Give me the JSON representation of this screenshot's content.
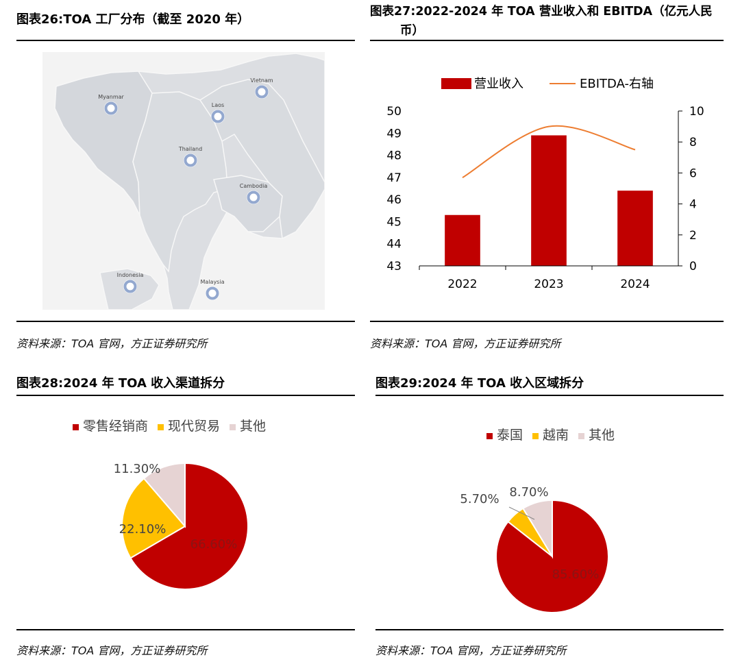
{
  "colors": {
    "red": "#C00000",
    "orange": "#ED7D31",
    "yellow": "#FFC000",
    "pink": "#E6D3D3",
    "map_land": "#DCDEE2",
    "map_sea": "#F3F3F3",
    "marker": "#93A8CF"
  },
  "fig26": {
    "title": "图表26:TOA 工厂分布（截至 2020 年）",
    "source": "资料来源：TOA 官网，方正证券研究所",
    "map": {
      "markers": [
        {
          "label": "Myanmar",
          "icon": "location-marker-icon"
        },
        {
          "label": "Laos",
          "icon": "location-marker-icon"
        },
        {
          "label": "Vietnam",
          "icon": "location-marker-icon"
        },
        {
          "label": "Thailand",
          "icon": "location-marker-icon"
        },
        {
          "label": "Cambodia",
          "icon": "location-marker-icon"
        },
        {
          "label": "Indonesia",
          "icon": "location-marker-icon"
        },
        {
          "label": "Malaysia",
          "icon": "location-marker-icon"
        }
      ]
    }
  },
  "fig27": {
    "title_line1": "图表27:2022-2024 年 TOA 营业收入和 EBITDA（亿元人民",
    "title_line2": "币）",
    "source": "资料来源：TOA 官网，方正证券研究所",
    "chart_data": {
      "type": "bar",
      "categories": [
        "2022",
        "2023",
        "2024"
      ],
      "series": [
        {
          "name": "营业收入",
          "type": "bar",
          "axis": "left",
          "values": [
            45.3,
            48.9,
            46.4
          ],
          "color": "#C00000"
        },
        {
          "name": "EBITDA-右轴",
          "type": "line",
          "axis": "right",
          "values": [
            5.7,
            9.0,
            7.5
          ],
          "color": "#ED7D31"
        }
      ],
      "ylim": [
        43,
        50
      ],
      "yticks": [
        "43",
        "44",
        "45",
        "46",
        "47",
        "48",
        "49",
        "50"
      ],
      "y2lim": [
        0,
        10
      ],
      "y2ticks": [
        "0",
        "2",
        "4",
        "6",
        "8",
        "10"
      ],
      "legend": "top"
    }
  },
  "fig28": {
    "title": "图表28:2024 年 TOA 收入渠道拆分",
    "source": "资料来源：TOA 官网，方正证券研究所",
    "chart_data": {
      "type": "pie",
      "labels": [
        "零售经销商",
        "现代贸易",
        "其他"
      ],
      "values": [
        66.6,
        22.1,
        11.3
      ],
      "value_labels": [
        "66.60%",
        "22.10%",
        "11.30%"
      ],
      "colors": [
        "#C00000",
        "#FFC000",
        "#E6D3D3"
      ],
      "legend": "top"
    }
  },
  "fig29": {
    "title": "图表29:2024 年 TOA 收入区域拆分",
    "source": "资料来源：TOA 官网，方正证券研究所",
    "chart_data": {
      "type": "pie",
      "labels": [
        "泰国",
        "越南",
        "其他"
      ],
      "values": [
        85.6,
        5.7,
        8.7
      ],
      "value_labels": [
        "85.60%",
        "5.70%",
        "8.70%"
      ],
      "colors": [
        "#C00000",
        "#FFC000",
        "#E6D3D3"
      ],
      "legend": "top"
    }
  }
}
